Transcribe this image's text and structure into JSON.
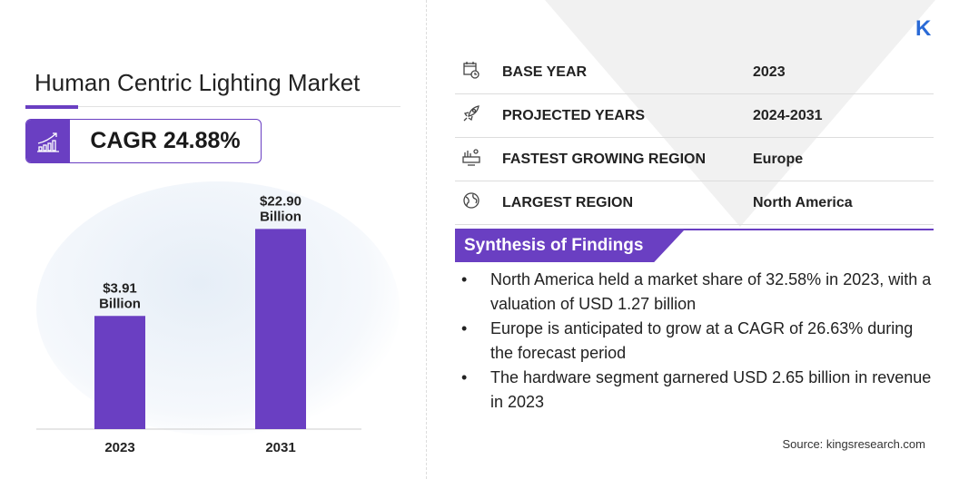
{
  "header": {
    "title": "Human Centric Lighting Market",
    "cagr": "CAGR 24.88%",
    "logo": "K"
  },
  "colors": {
    "accent": "#6a3fc2",
    "text": "#222222"
  },
  "chart_data": {
    "type": "bar",
    "categories": [
      "2023",
      "2031"
    ],
    "values": [
      3.91,
      22.9
    ],
    "data_labels": [
      [
        "$3.91",
        "Billion"
      ],
      [
        "$22.90",
        "Billion"
      ]
    ],
    "title": "",
    "xlabel": "",
    "ylabel": "",
    "grid": false
  },
  "stats": [
    {
      "icon": "calendar-clock-icon",
      "label": "BASE YEAR",
      "value": "2023"
    },
    {
      "icon": "rocket-icon",
      "label": "PROJECTED YEARS",
      "value": "2024-2031"
    },
    {
      "icon": "growth-region-icon",
      "label": "FASTEST GROWING REGION",
      "value": "Europe"
    },
    {
      "icon": "globe-icon",
      "label": "LARGEST REGION",
      "value": "North America"
    }
  ],
  "synthesis": {
    "title": "Synthesis of Findings",
    "bullet": "•",
    "items": [
      "North America held a market share of 32.58% in 2023, with a valuation of USD 1.27 billion",
      "Europe is anticipated to grow at a CAGR of 26.63% during the forecast period",
      "The hardware segment garnered USD 2.65 billion in revenue in 2023"
    ]
  },
  "source": "Source:  kingsresearch.com"
}
